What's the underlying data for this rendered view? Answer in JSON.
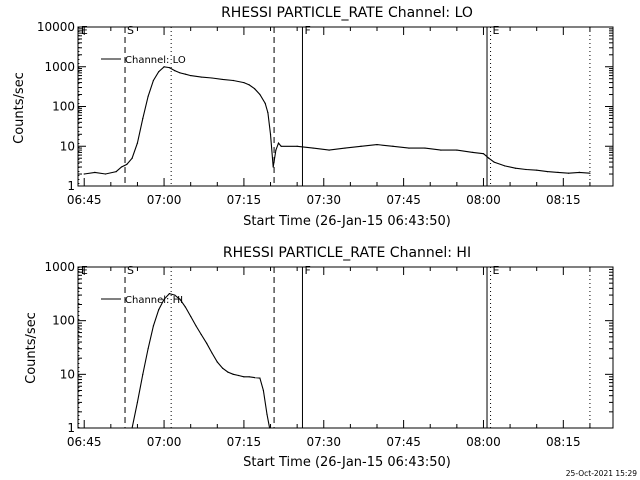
{
  "footer_timestamp": "25-Oct-2021 15:29",
  "chart_data": [
    {
      "type": "line",
      "title": "RHESSI PARTICLE_RATE Channel: LO",
      "xlabel": "Start Time (26-Jan-15 06:43:50)",
      "ylabel": "Counts/sec",
      "legend": "Channel: LO",
      "legend_position": "top-left",
      "y_scale": "log",
      "xlim": [
        "06:43:50",
        "08:24:20"
      ],
      "ylim": [
        1,
        10000
      ],
      "x_ticks": [
        "06:45",
        "07:00",
        "07:15",
        "07:30",
        "07:45",
        "08:00",
        "08:15"
      ],
      "y_ticks": [
        "1",
        "10",
        "100",
        "1000",
        "10000"
      ],
      "series": [
        {
          "name": "Channel: LO",
          "x": [
            "06:45",
            "06:47",
            "06:49",
            "06:51",
            "06:52",
            "06:53",
            "06:54",
            "06:55",
            "06:56",
            "06:57",
            "06:58",
            "06:59",
            "07:00",
            "07:01",
            "07:02",
            "07:03",
            "07:04",
            "07:05",
            "07:07",
            "07:09",
            "07:11",
            "07:13",
            "07:15",
            "07:16",
            "07:17",
            "07:18",
            "07:19",
            "07:19:30",
            "07:20",
            "07:20:30",
            "07:21",
            "07:21:30",
            "07:22",
            "07:25",
            "07:28",
            "07:31",
            "07:34",
            "07:37",
            "07:40",
            "07:43",
            "07:46",
            "07:49",
            "07:52",
            "07:55",
            "07:58",
            "08:00",
            "08:01",
            "08:02",
            "08:04",
            "08:06",
            "08:08",
            "08:10",
            "08:12",
            "08:14",
            "08:16",
            "08:18",
            "08:20"
          ],
          "y": [
            2,
            2.2,
            2,
            2.3,
            3,
            3.5,
            5,
            12,
            50,
            180,
            450,
            750,
            1000,
            950,
            800,
            700,
            650,
            600,
            550,
            520,
            480,
            450,
            400,
            350,
            280,
            200,
            120,
            70,
            20,
            3,
            8,
            12,
            10,
            10,
            9,
            8,
            9,
            10,
            11,
            10,
            9,
            9,
            8,
            8,
            7,
            6.5,
            5,
            4,
            3.2,
            2.8,
            2.6,
            2.5,
            2.3,
            2.2,
            2.1,
            2.2,
            2.1
          ]
        }
      ],
      "markers": [
        {
          "label": "E",
          "time": "06:44:00",
          "style": "dotted"
        },
        {
          "label": "S",
          "time": "06:52:40",
          "style": "dashed"
        },
        {
          "label": "",
          "time": "07:01:20",
          "style": "dotted"
        },
        {
          "label": "",
          "time": "07:20:40",
          "style": "dashed"
        },
        {
          "label": "F",
          "time": "07:26:00",
          "style": "solid"
        },
        {
          "label": "",
          "time": "08:00:40",
          "style": "solid"
        },
        {
          "label": "E",
          "time": "08:01:20",
          "style": "dotted"
        },
        {
          "label": "",
          "time": "08:20:00",
          "style": "dotted"
        }
      ]
    },
    {
      "type": "line",
      "title": "RHESSI PARTICLE_RATE Channel: HI",
      "xlabel": "Start Time (26-Jan-15 06:43:50)",
      "ylabel": "Counts/sec",
      "legend": "Channel: HI",
      "legend_position": "top-left",
      "y_scale": "log",
      "xlim": [
        "06:43:50",
        "08:24:20"
      ],
      "ylim": [
        1,
        1000
      ],
      "x_ticks": [
        "06:45",
        "07:00",
        "07:15",
        "07:30",
        "07:45",
        "08:00",
        "08:15"
      ],
      "y_ticks": [
        "1",
        "10",
        "100",
        "1000"
      ],
      "series": [
        {
          "name": "Channel: HI",
          "x": [
            "06:54:00",
            "06:55",
            "06:56",
            "06:57",
            "06:58",
            "06:59",
            "07:00",
            "07:01",
            "07:02",
            "07:03",
            "07:04",
            "07:05",
            "07:06",
            "07:07",
            "07:08",
            "07:09",
            "07:10",
            "07:11",
            "07:12",
            "07:13",
            "07:14",
            "07:15",
            "07:16",
            "07:17",
            "07:18",
            "07:18:40",
            "07:19:20",
            "07:19:50"
          ],
          "y": [
            1,
            3,
            10,
            30,
            80,
            160,
            250,
            320,
            300,
            250,
            180,
            120,
            80,
            55,
            38,
            25,
            17,
            13,
            11,
            10,
            9.5,
            9,
            9,
            8.7,
            8.5,
            5,
            1.8,
            1
          ]
        }
      ],
      "markers": [
        {
          "label": "E",
          "time": "06:44:00",
          "style": "dotted"
        },
        {
          "label": "S",
          "time": "06:52:40",
          "style": "dashed"
        },
        {
          "label": "",
          "time": "07:01:20",
          "style": "dotted"
        },
        {
          "label": "",
          "time": "07:20:40",
          "style": "dashed"
        },
        {
          "label": "F",
          "time": "07:26:00",
          "style": "solid"
        },
        {
          "label": "",
          "time": "08:00:40",
          "style": "solid"
        },
        {
          "label": "E",
          "time": "08:01:20",
          "style": "dotted"
        },
        {
          "label": "",
          "time": "08:20:00",
          "style": "dotted"
        }
      ]
    }
  ]
}
